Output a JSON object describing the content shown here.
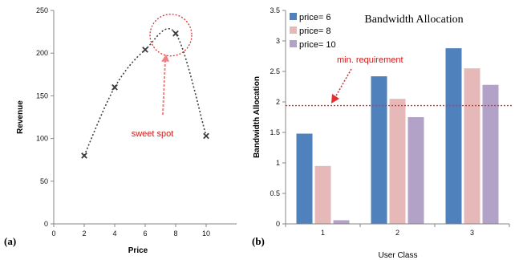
{
  "chart_data": [
    {
      "type": "line",
      "panel_label": "(a)",
      "title": "",
      "xlabel": "Price",
      "ylabel": "Revenue",
      "x": [
        2,
        4,
        6,
        8,
        10
      ],
      "values": [
        80,
        160,
        204,
        223,
        103
      ],
      "xlim": [
        0,
        12
      ],
      "ylim": [
        0,
        250
      ],
      "xticks": [
        0,
        2,
        4,
        6,
        8,
        10
      ],
      "yticks": [
        0,
        50,
        100,
        150,
        200,
        250
      ],
      "line_style": "dotted",
      "marker": "x",
      "color": "#404040",
      "annotation": {
        "text": "sweet spot",
        "points_to_x": 8,
        "points_to_y": 223,
        "color": "#e06666"
      }
    },
    {
      "type": "bar",
      "panel_label": "(b)",
      "title": "Bandwidth Allocation",
      "xlabel": "User Class",
      "ylabel": "Bandwidth Allocation",
      "categories": [
        "1",
        "2",
        "3"
      ],
      "ylim": [
        0,
        3.5
      ],
      "yticks": [
        "0",
        "0.5",
        "1",
        "1.5",
        "2",
        "2.5",
        "3",
        "3.5"
      ],
      "series": [
        {
          "name": "price= 6",
          "values": [
            1.48,
            2.42,
            2.88
          ],
          "color": "#4f81bd"
        },
        {
          "name": "price= 8",
          "values": [
            0.95,
            2.05,
            2.55
          ],
          "color": "#e6b9b8"
        },
        {
          "name": "price= 10",
          "values": [
            0.06,
            1.75,
            2.28
          ],
          "color": "#b3a2c7"
        }
      ],
      "legend": "top-left",
      "reference_line": {
        "label": "min. requirement",
        "y": 1.94,
        "color": "#e03030"
      }
    }
  ]
}
